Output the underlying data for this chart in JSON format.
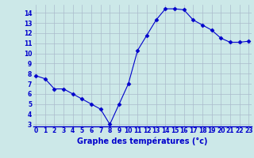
{
  "hours": [
    0,
    1,
    2,
    3,
    4,
    5,
    6,
    7,
    8,
    9,
    10,
    11,
    12,
    13,
    14,
    15,
    16,
    17,
    18,
    19,
    20,
    21,
    22,
    23
  ],
  "temperatures": [
    7.8,
    7.5,
    6.5,
    6.5,
    6.0,
    5.5,
    5.0,
    4.5,
    3.0,
    5.0,
    7.0,
    10.3,
    11.8,
    13.3,
    14.4,
    14.4,
    14.3,
    13.3,
    12.8,
    12.3,
    11.5,
    11.1,
    11.1,
    11.2
  ],
  "line_color": "#0000cc",
  "marker": "D",
  "marker_size": 2.5,
  "bg_color": "#cce8e8",
  "grid_color": "#aabbcc",
  "xlabel": "Graphe des températures (°c)",
  "xlabel_color": "#0000cc",
  "ylim_min": 2.8,
  "ylim_max": 14.8,
  "xlim_min": -0.3,
  "xlim_max": 23.3,
  "yticks": [
    3,
    4,
    5,
    6,
    7,
    8,
    9,
    10,
    11,
    12,
    13,
    14
  ],
  "xticks": [
    0,
    1,
    2,
    3,
    4,
    5,
    6,
    7,
    8,
    9,
    10,
    11,
    12,
    13,
    14,
    15,
    16,
    17,
    18,
    19,
    20,
    21,
    22,
    23
  ],
  "tick_fontsize": 5.5,
  "xlabel_fontsize": 7.0
}
